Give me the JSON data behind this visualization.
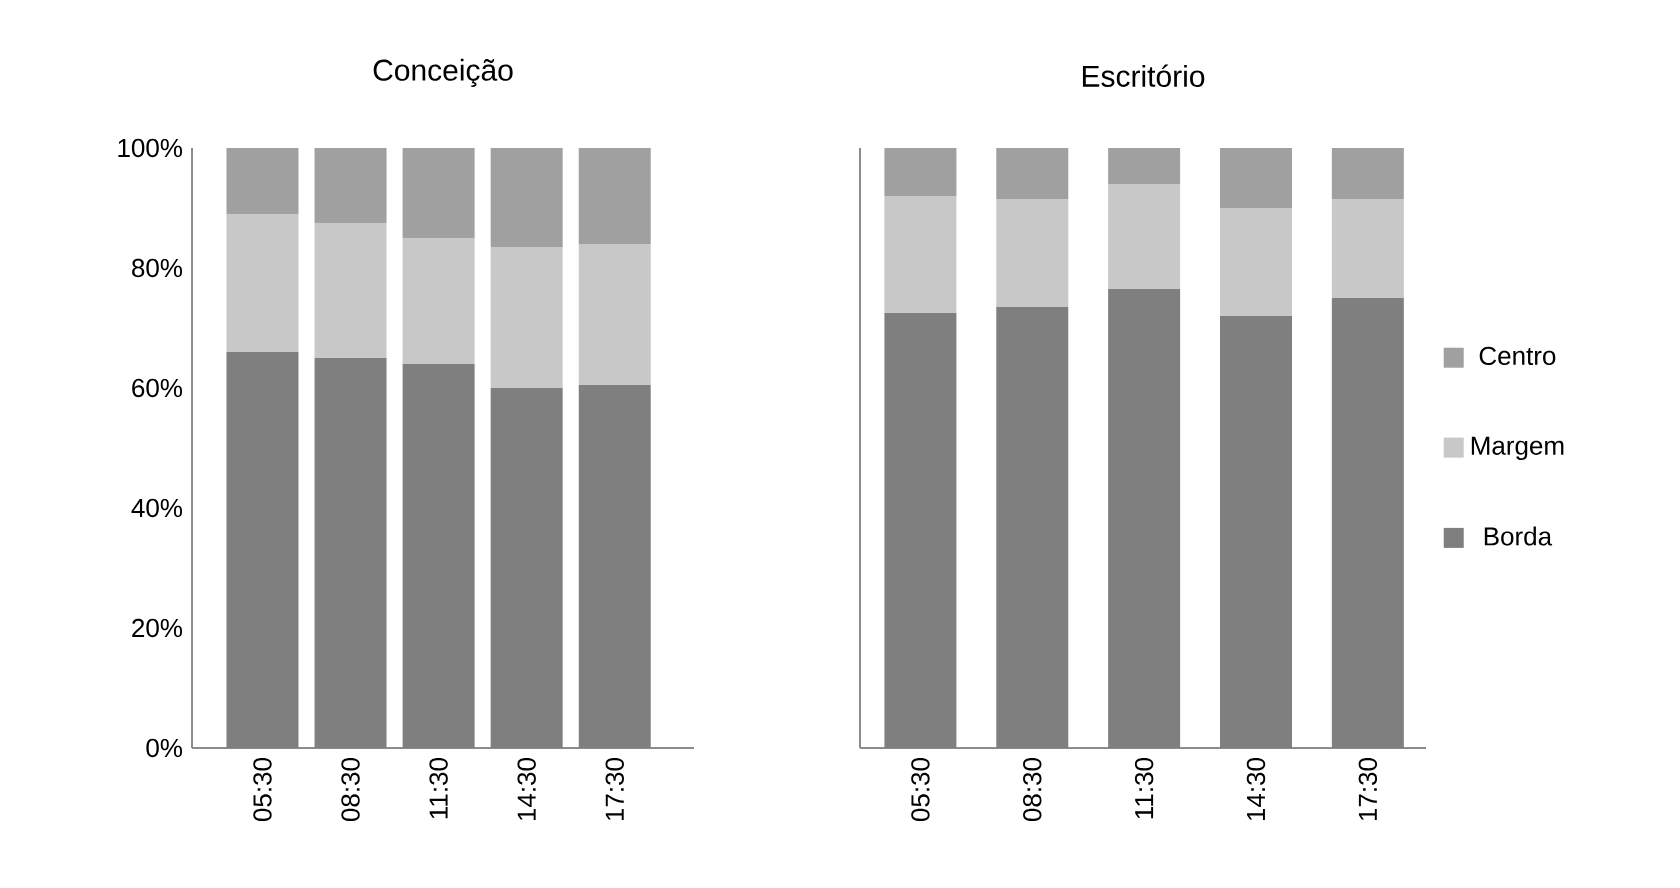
{
  "chart_data": [
    {
      "type": "bar",
      "title": "Conceição",
      "stacked": true,
      "categories": [
        "05:30",
        "08:30",
        "11:30",
        "14:30",
        "17:30"
      ],
      "series": [
        {
          "color": "#7f7f7f",
          "values": [
            66,
            65,
            64,
            60,
            60.5
          ]
        },
        {
          "color": "#c8c8c8",
          "values": [
            23,
            22.5,
            21,
            23.5,
            23.5
          ]
        },
        {
          "color": "#a0a0a0",
          "values": [
            11,
            12.5,
            15,
            16.5,
            16
          ]
        }
      ],
      "ylim": [
        0,
        100
      ],
      "yticks": [
        {
          "value": 0,
          "label": "0%"
        },
        {
          "value": 20,
          "label": "20%"
        },
        {
          "value": 40,
          "label": "40%"
        },
        {
          "value": 60,
          "label": "60%"
        },
        {
          "value": 80,
          "label": "80%"
        },
        {
          "value": 100,
          "label": "100%"
        }
      ]
    },
    {
      "type": "bar",
      "title": "Escritório",
      "stacked": true,
      "categories": [
        "05:30",
        "08:30",
        "11:30",
        "14:30",
        "17:30"
      ],
      "series": [
        {
          "name": "Borda",
          "color": "#7f7f7f",
          "values": [
            72.5,
            73.5,
            76.5,
            72,
            75
          ]
        },
        {
          "name": "Margem",
          "color": "#c8c8c8",
          "values": [
            19.5,
            18,
            17.5,
            18,
            16.5
          ]
        },
        {
          "name": "Centro",
          "color": "#a0a0a0",
          "values": [
            8,
            8.5,
            6,
            10,
            8.5
          ]
        }
      ],
      "ylim": [
        0,
        100
      ],
      "yticks": [
        {
          "value": 0,
          "label": null
        },
        {
          "value": 20,
          "label": null
        },
        {
          "value": 40,
          "label": null
        },
        {
          "value": 60,
          "label": null
        },
        {
          "value": 80,
          "label": null
        },
        {
          "value": 100,
          "label": null
        }
      ],
      "tick_labels": "x",
      "legend": "right"
    }
  ]
}
